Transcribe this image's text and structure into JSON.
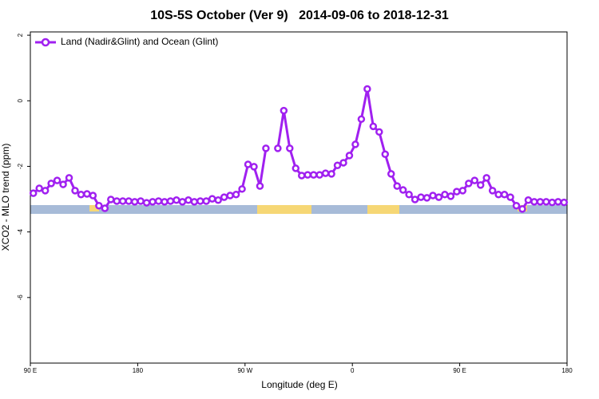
{
  "chart_data": {
    "type": "line",
    "title": "10S-5S October (Ver 9)   2014-09-06 to 2018-12-31",
    "xlabel": "Longitude (deg E)",
    "ylabel": "XCO2 - MLO trend (ppm)",
    "x": [
      92.5,
      97.5,
      102.5,
      107.5,
      112.5,
      117.5,
      122.5,
      127.5,
      132.5,
      137.5,
      142.5,
      147.5,
      152.5,
      157.5,
      162.5,
      167.5,
      172.5,
      177.5,
      182.5,
      187.5,
      192.5,
      197.5,
      202.5,
      207.5,
      212.5,
      217.5,
      222.5,
      227.5,
      232.5,
      237.5,
      242.5,
      247.5,
      252.5,
      257.5,
      262.5,
      267.5,
      272.5,
      277.5,
      282.5,
      287.5,
      292.5,
      297.5,
      302.5,
      307.5,
      312.5,
      317.5,
      322.5,
      327.5,
      332.5,
      337.5,
      342.5,
      347.5,
      352.5,
      357.5,
      362.5,
      367.5,
      372.5,
      377.5,
      382.5,
      387.5,
      392.5,
      397.5,
      402.5,
      407.5,
      412.5,
      417.5,
      422.5,
      427.5,
      432.5,
      437.5,
      442.5,
      447.5,
      452.5,
      457.5,
      462.5,
      467.5,
      472.5,
      477.5,
      482.5,
      487.5,
      492.5,
      497.5,
      502.5,
      507.5,
      512.5,
      517.5,
      522.5,
      527.5,
      532.5,
      537.5
    ],
    "series": [
      {
        "name": "Land (Nadir&Glint) and Ocean (Glint)",
        "color": "#a020f0",
        "values": [
          -2.82,
          -2.67,
          -2.74,
          -2.52,
          -2.43,
          -2.55,
          -2.35,
          -2.74,
          -2.86,
          -2.84,
          -2.89,
          -3.2,
          -3.28,
          -3.01,
          -3.06,
          -3.06,
          -3.06,
          -3.08,
          -3.06,
          -3.11,
          -3.08,
          -3.06,
          -3.08,
          -3.06,
          -3.03,
          -3.08,
          -3.03,
          -3.08,
          -3.06,
          -3.06,
          -2.99,
          -3.03,
          -2.94,
          -2.89,
          -2.86,
          -2.69,
          -1.94,
          -2.01,
          -2.6,
          -1.45,
          null,
          -1.45,
          -0.3,
          -1.45,
          -2.06,
          -2.28,
          -2.26,
          -2.26,
          -2.26,
          -2.21,
          -2.23,
          -1.97,
          -1.89,
          -1.67,
          -1.33,
          -0.56,
          0.36,
          -0.78,
          -0.95,
          -1.63,
          -2.23,
          -2.6,
          -2.72,
          -2.86,
          -3.01,
          -2.94,
          -2.96,
          -2.89,
          -2.94,
          -2.86,
          -2.91,
          -2.77,
          -2.74,
          -2.52,
          -2.43,
          -2.57,
          -2.35,
          -2.74,
          -2.86,
          -2.86,
          -2.94,
          -3.2,
          -3.3,
          -3.03,
          -3.08,
          -3.08,
          -3.08,
          -3.1,
          -3.08,
          -3.1
        ]
      }
    ],
    "xlim": [
      90,
      540
    ],
    "xticks": [
      {
        "value": 90,
        "label": "90 E"
      },
      180,
      {
        "value": 270,
        "label": "90 W"
      },
      {
        "value": 360,
        "label": "0"
      },
      {
        "value": 450,
        "label": "90 E"
      },
      {
        "value": 540,
        "label": "180"
      }
    ],
    "ylim": [
      -8,
      2.1
    ],
    "yticks": [
      2,
      0,
      -2,
      -4,
      -6
    ],
    "legend": "top-left"
  }
}
